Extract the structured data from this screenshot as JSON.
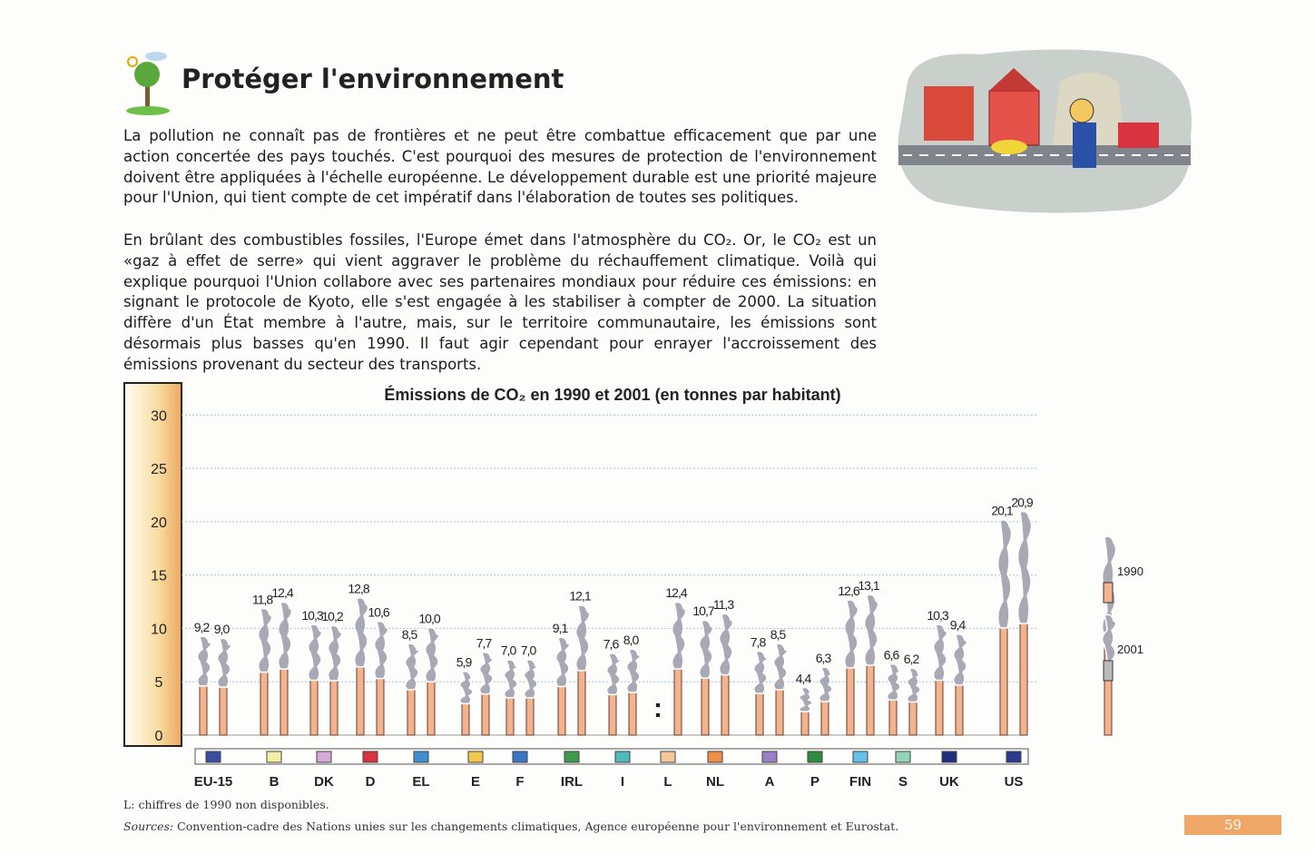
{
  "header": {
    "title": "Protéger l'environnement"
  },
  "paragraphs": [
    "La pollution ne connaît pas de frontières et ne peut être combattue efficacement que par une action concertée des pays touchés. C'est pourquoi des mesures de protection de l'environnement doivent être appliquées à l'échelle européenne. Le développement durable est une priorité majeure pour l'Union, qui tient compte de cet impératif dans l'élaboration de toutes ses politiques.",
    "En brûlant des combustibles fossiles, l'Europe émet dans l'atmosphère du CO₂. Or, le CO₂ est un «gaz à effet de serre» qui vient aggraver le problème du réchauffement climatique. Voilà qui explique pourquoi l'Union collabore avec ses partenaires mondiaux pour réduire ces émissions: en signant le protocole de Kyoto, elle s'est engagée à les stabiliser à compter de 2000. La situation diffère d'un État membre à l'autre, mais, sur le territoire communautaire, les émissions sont désormais plus basses qu'en 1990. Il faut agir cependant pour enrayer l'accroissement des émissions provenant du secteur des transports."
  ],
  "chart_data": {
    "type": "bar",
    "title": "Émissions de CO₂ en 1990 et 2001 (en tonnes par habitant)",
    "categories": [
      "EU-15",
      "B",
      "DK",
      "D",
      "EL",
      "E",
      "F",
      "IRL",
      "I",
      "L",
      "NL",
      "A",
      "P",
      "FIN",
      "S",
      "UK",
      "US"
    ],
    "category_colors": [
      "#3a4fa0",
      "#f4efa6",
      "#d6a9d6",
      "#d9333f",
      "#3d8fd0",
      "#f2c84b",
      "#3a76c6",
      "#3d9b4a",
      "#4fb9bd",
      "#f4c89a",
      "#ef8f4a",
      "#9b7fc4",
      "#2e8a3e",
      "#66c1e8",
      "#93d3b6",
      "#1f2f80",
      "#2a3a8e"
    ],
    "series": [
      {
        "name": "1990",
        "color": "#f2b48e",
        "values": [
          9.2,
          11.8,
          10.3,
          12.8,
          8.5,
          5.9,
          7.0,
          9.1,
          7.6,
          null,
          10.7,
          7.8,
          4.4,
          12.6,
          6.6,
          10.3,
          20.1
        ],
        "value_labels": [
          "9,2",
          "11,8",
          "10,3",
          "12,8",
          "8,5",
          "5,9",
          "7,0",
          "9,1",
          "7,6",
          ":",
          "10,7",
          "7,8",
          "4,4",
          "12,6",
          "6,6",
          "10,3",
          "20,1"
        ]
      },
      {
        "name": "2001",
        "color": "#f2b48e",
        "values": [
          9.0,
          12.4,
          10.2,
          10.6,
          10.0,
          7.7,
          7.0,
          12.1,
          8.0,
          12.4,
          11.3,
          8.5,
          6.3,
          13.1,
          6.2,
          9.4,
          20.9
        ],
        "value_labels": [
          "9,0",
          "12,4",
          "10,2",
          "10,6",
          "10,0",
          "7,7",
          "7,0",
          "12,1",
          "8,0",
          "12,4",
          "11,3",
          "8,5",
          "6,3",
          "13,1",
          "6,2",
          "9,4",
          "20,9"
        ]
      }
    ],
    "ylim": [
      0,
      33
    ],
    "yticks": [
      0,
      5,
      10,
      15,
      20,
      25,
      30
    ],
    "grid": true
  },
  "footnote": "L: chiffres de 1990 non disponibles.",
  "sources": {
    "label": "Sources:",
    "text": "Convention-cadre des Nations unies sur les changements climatiques, Agence européenne pour l'environnement et Eurostat."
  },
  "page_number": "59"
}
